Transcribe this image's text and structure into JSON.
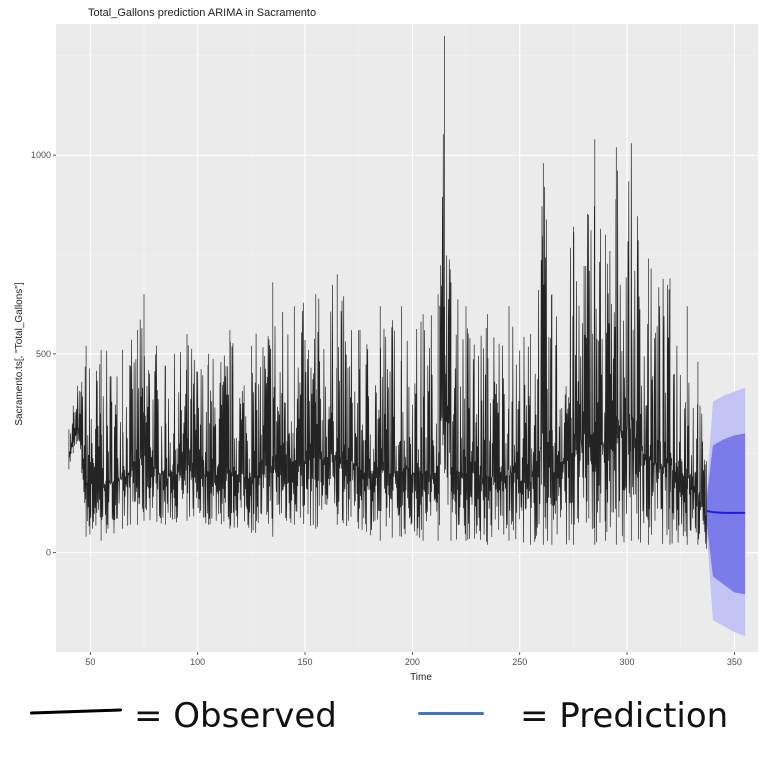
{
  "colors": {
    "panel": "#ebebeb",
    "grid_major": "#ffffff",
    "grid_minor": "#f4f4f4",
    "observed": "#000000",
    "forecast_line": "#1f1fd6",
    "ci80": "#7b7bea",
    "ci95": "#c3c3f5",
    "legend_observed": "#000000",
    "legend_prediction": "#4472c4"
  },
  "legend": {
    "observed_label": "= Observed",
    "prediction_label": "= Prediction"
  },
  "chart_data": {
    "type": "line",
    "title": "Total_Gallons prediction ARIMA in Sacramento",
    "xlabel": "Time",
    "ylabel": "Sacramento.ts[, \"Total_Gallons\"]",
    "xlim": [
      34,
      361
    ],
    "ylim": [
      -250,
      1330
    ],
    "x_ticks": [
      50,
      100,
      150,
      200,
      250,
      300,
      350
    ],
    "y_ticks": [
      0,
      500,
      1000
    ],
    "grid": true,
    "legend_position": "bottom",
    "series": [
      {
        "kind": "observed",
        "x_start": 40,
        "x_end": 337,
        "envelope": [
          [
            40,
            210,
            310
          ],
          [
            42,
            250,
            370
          ],
          [
            44,
            280,
            420
          ],
          [
            46,
            200,
            430
          ],
          [
            48,
            40,
            520
          ],
          [
            55,
            30,
            510
          ],
          [
            65,
            60,
            510
          ],
          [
            72,
            70,
            560
          ],
          [
            75,
            80,
            650
          ],
          [
            85,
            70,
            470
          ],
          [
            95,
            80,
            550
          ],
          [
            105,
            70,
            500
          ],
          [
            115,
            60,
            560
          ],
          [
            125,
            50,
            520
          ],
          [
            135,
            40,
            680
          ],
          [
            145,
            70,
            620
          ],
          [
            155,
            60,
            650
          ],
          [
            165,
            70,
            700
          ],
          [
            175,
            60,
            560
          ],
          [
            185,
            30,
            620
          ],
          [
            195,
            40,
            620
          ],
          [
            205,
            30,
            600
          ],
          [
            212,
            30,
            650
          ],
          [
            215,
            200,
            1300
          ],
          [
            218,
            30,
            680
          ],
          [
            225,
            30,
            620
          ],
          [
            235,
            20,
            600
          ],
          [
            245,
            30,
            620
          ],
          [
            255,
            20,
            550
          ],
          [
            261,
            20,
            980
          ],
          [
            265,
            20,
            650
          ],
          [
            275,
            20,
            820
          ],
          [
            285,
            20,
            1040
          ],
          [
            290,
            30,
            800
          ],
          [
            295,
            20,
            1020
          ],
          [
            302,
            30,
            1030
          ],
          [
            310,
            20,
            740
          ],
          [
            320,
            20,
            690
          ],
          [
            328,
            20,
            620
          ],
          [
            333,
            20,
            480
          ],
          [
            337,
            10,
            230
          ]
        ]
      },
      {
        "kind": "forecast",
        "name": "",
        "x": [
          337,
          340,
          345,
          350,
          355
        ],
        "mean": [
          105,
          102,
          100,
          100,
          100
        ],
        "lo80": [
          80,
          -60,
          -80,
          -100,
          -105
        ],
        "hi80": [
          130,
          270,
          285,
          295,
          300
        ],
        "lo95": [
          60,
          -170,
          -185,
          -200,
          -210
        ],
        "hi95": [
          150,
          380,
          395,
          405,
          415
        ]
      }
    ]
  }
}
